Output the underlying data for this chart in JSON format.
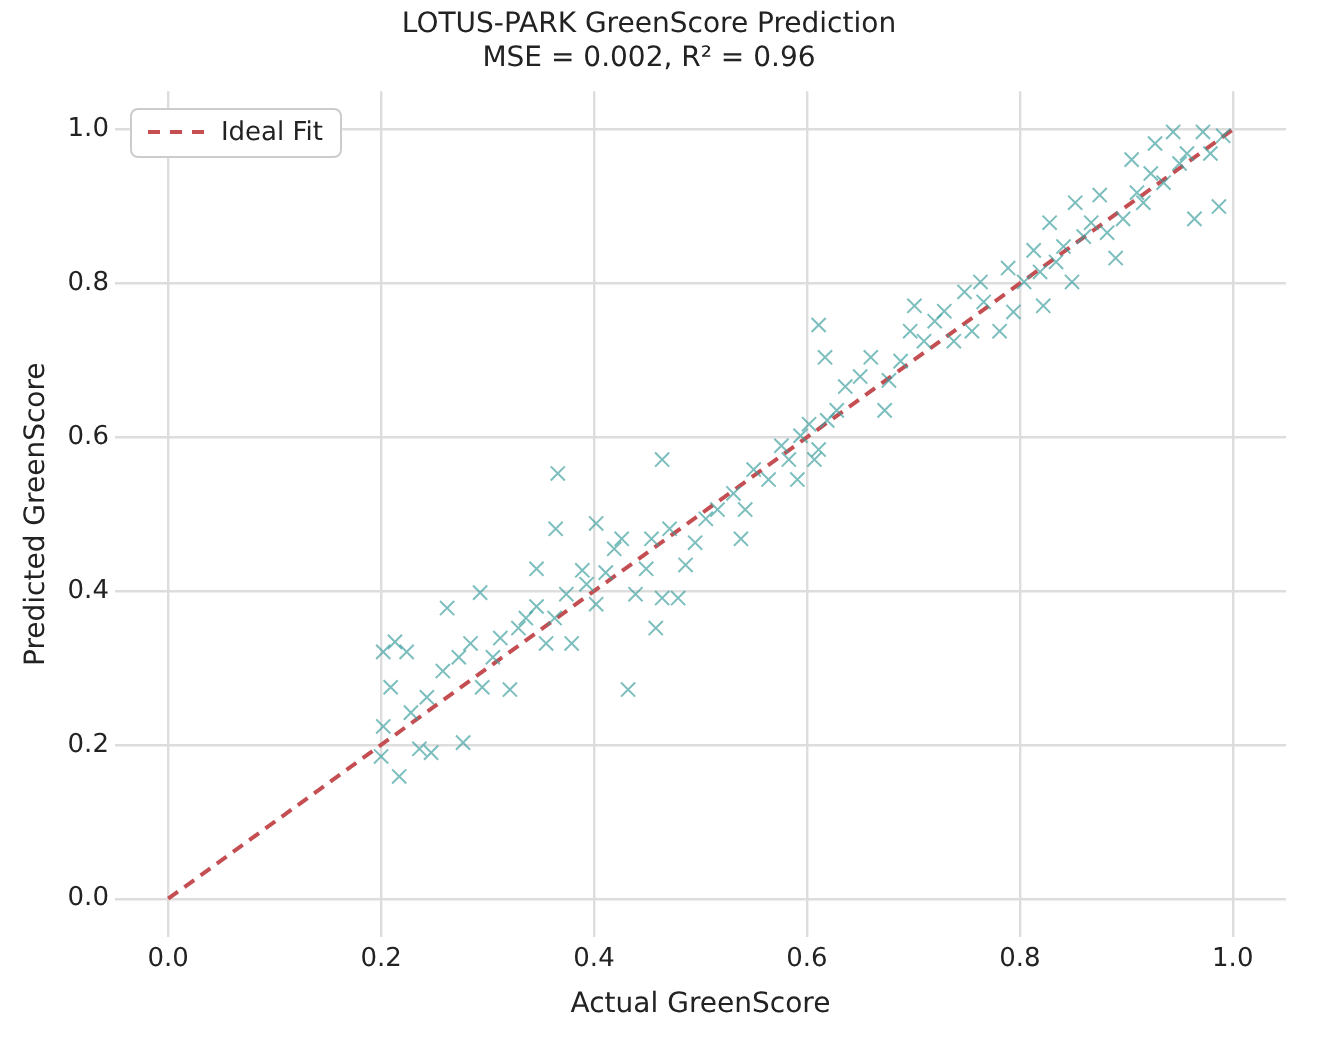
{
  "chart_data": {
    "type": "scatter",
    "title": "LOTUS-PARK GreenScore Prediction",
    "subtitle": "MSE = 0.002, R² = 0.96",
    "xlabel": "Actual GreenScore",
    "ylabel": "Predicted GreenScore",
    "xlim": [
      -0.05,
      1.05
    ],
    "ylim": [
      -0.05,
      1.05
    ],
    "xticks": [
      {
        "value": 0,
        "label": "0.0"
      },
      {
        "value": 0.2,
        "label": "0.2"
      },
      {
        "value": 0.4,
        "label": "0.4"
      },
      {
        "value": 0.6,
        "label": "0.6"
      },
      {
        "value": 0.8,
        "label": "0.8"
      },
      {
        "value": 1,
        "label": "1.0"
      }
    ],
    "yticks": [
      {
        "value": 0,
        "label": "0.0"
      },
      {
        "value": 0.2,
        "label": "0.2"
      },
      {
        "value": 0.4,
        "label": "0.4"
      },
      {
        "value": 0.6,
        "label": "0.6"
      },
      {
        "value": 0.8,
        "label": "0.8"
      },
      {
        "value": 1,
        "label": "1.0"
      }
    ],
    "grid": true,
    "legend": "top left",
    "marker": "cross",
    "series": [
      {
        "color": "#3a9e9e",
        "x": [
          0.202,
          0.213,
          0.224,
          0.209,
          0.202,
          0.2,
          0.217,
          0.228,
          0.236,
          0.247,
          0.243,
          0.258,
          0.262,
          0.273,
          0.284,
          0.277,
          0.293,
          0.295,
          0.305,
          0.312,
          0.321,
          0.329,
          0.336,
          0.346,
          0.346,
          0.355,
          0.364,
          0.366,
          0.363,
          0.374,
          0.379,
          0.389,
          0.393,
          0.402,
          0.402,
          0.411,
          0.419,
          0.426,
          0.432,
          0.439,
          0.449,
          0.454,
          0.458,
          0.464,
          0.464,
          0.471,
          0.479,
          0.486,
          0.495,
          0.505,
          0.516,
          0.531,
          0.538,
          0.542,
          0.55,
          0.564,
          0.576,
          0.583,
          0.591,
          0.594,
          0.602,
          0.607,
          0.611,
          0.619,
          0.611,
          0.617,
          0.628,
          0.636,
          0.65,
          0.66,
          0.673,
          0.677,
          0.688,
          0.697,
          0.701,
          0.71,
          0.72,
          0.729,
          0.738,
          0.748,
          0.755,
          0.763,
          0.766,
          0.781,
          0.789,
          0.794,
          0.804,
          0.813,
          0.819,
          0.822,
          0.828,
          0.834,
          0.841,
          0.849,
          0.852,
          0.86,
          0.867,
          0.875,
          0.882,
          0.89,
          0.897,
          0.905,
          0.91,
          0.916,
          0.923,
          0.927,
          0.935,
          0.944,
          0.95,
          0.957,
          0.964,
          0.972,
          0.979,
          0.987,
          0.991
        ],
        "values": [
          0.321,
          0.334,
          0.321,
          0.275,
          0.224,
          0.185,
          0.159,
          0.242,
          0.195,
          0.19,
          0.262,
          0.296,
          0.378,
          0.314,
          0.332,
          0.203,
          0.398,
          0.275,
          0.314,
          0.339,
          0.272,
          0.352,
          0.365,
          0.38,
          0.429,
          0.332,
          0.481,
          0.553,
          0.365,
          0.396,
          0.332,
          0.427,
          0.409,
          0.488,
          0.383,
          0.424,
          0.455,
          0.468,
          0.272,
          0.396,
          0.429,
          0.468,
          0.352,
          0.391,
          0.571,
          0.481,
          0.391,
          0.434,
          0.463,
          0.494,
          0.506,
          0.527,
          0.468,
          0.506,
          0.558,
          0.545,
          0.589,
          0.571,
          0.545,
          0.602,
          0.617,
          0.571,
          0.584,
          0.622,
          0.746,
          0.704,
          0.635,
          0.666,
          0.679,
          0.704,
          0.635,
          0.674,
          0.699,
          0.738,
          0.771,
          0.725,
          0.751,
          0.764,
          0.725,
          0.789,
          0.738,
          0.802,
          0.776,
          0.738,
          0.82,
          0.763,
          0.802,
          0.843,
          0.815,
          0.771,
          0.879,
          0.828,
          0.848,
          0.802,
          0.905,
          0.861,
          0.879,
          0.915,
          0.866,
          0.833,
          0.884,
          0.961,
          0.918,
          0.905,
          0.943,
          0.982,
          0.931,
          0.997,
          0.956,
          0.969,
          0.884,
          0.997,
          0.969,
          0.9,
          0.992
        ]
      },
      {
        "type": "line",
        "name": "Ideal Fit",
        "color": "#c44e52",
        "line_style": "dashed",
        "marker": "none",
        "x": [
          0,
          1
        ],
        "values": [
          0,
          1
        ]
      }
    ]
  }
}
